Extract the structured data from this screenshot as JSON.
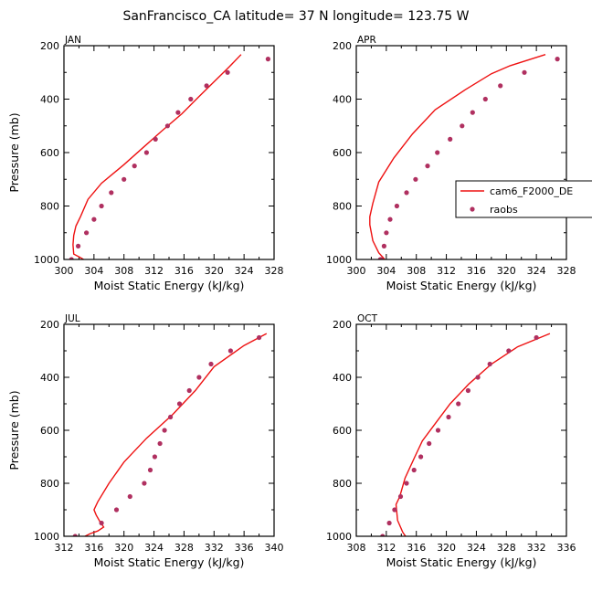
{
  "figure": {
    "title": "SanFrancisco_CA  latitude= 37 N longitude= 123.75 W"
  },
  "colors": {
    "model": "#ee1111",
    "obs": "#b03060"
  },
  "legend": {
    "model_label": "cam6_F2000_DE",
    "obs_label": "raobs"
  },
  "chart_data": [
    {
      "type": "scatter",
      "panel": "JAN",
      "xlabel": "Moist Static Energy (kJ/kg)",
      "ylabel": "Pressure (mb)",
      "xlim": [
        300,
        328
      ],
      "ylim": [
        1000,
        200
      ],
      "xticks": [
        300,
        304,
        308,
        312,
        316,
        320,
        324,
        328
      ],
      "xticklabels": [
        "300",
        "304",
        "308",
        "312",
        "316",
        "320",
        "324",
        "328"
      ],
      "yticks": [
        200,
        400,
        600,
        800,
        1000
      ],
      "yticklabels": [
        "200",
        "400",
        "600",
        "800",
        "1000"
      ],
      "series": [
        {
          "name": "cam6_F2000_DE",
          "kind": "line",
          "x": [
            323.6,
            322.0,
            320.0,
            318.0,
            315.7,
            313.0,
            310.8,
            308.0,
            305.0,
            303.2,
            302.2,
            301.6,
            301.3,
            301.2,
            301.3,
            302.2,
            303.2
          ],
          "y": [
            233,
            280,
            335,
            390,
            455,
            520,
            575,
            645,
            715,
            775,
            840,
            875,
            910,
            945,
            980,
            993,
            1010
          ]
        },
        {
          "name": "raobs",
          "kind": "scatter",
          "x": [
            327.2,
            321.8,
            319.0,
            316.9,
            315.2,
            313.8,
            312.2,
            311.0,
            309.4,
            308.0,
            306.3,
            305.0,
            304.0,
            303.0,
            301.9,
            301.0
          ],
          "y": [
            250,
            300,
            350,
            400,
            450,
            500,
            550,
            600,
            650,
            700,
            750,
            800,
            850,
            900,
            950,
            1000
          ]
        }
      ]
    },
    {
      "type": "scatter",
      "panel": "APR",
      "xlabel": "Moist Static Energy (kJ/kg)",
      "ylabel": "Pressure (mb)",
      "xlim": [
        300,
        328
      ],
      "ylim": [
        1000,
        200
      ],
      "xticks": [
        300,
        304,
        308,
        312,
        316,
        320,
        324,
        328
      ],
      "xticklabels": [
        "300",
        "304",
        "308",
        "312",
        "316",
        "320",
        "324",
        "328"
      ],
      "yticks": [
        200,
        400,
        600,
        800,
        1000
      ],
      "yticklabels": [
        "200",
        "400",
        "600",
        "800",
        "1000"
      ],
      "series": [
        {
          "name": "cam6_F2000_DE",
          "kind": "line",
          "x": [
            325.2,
            320.5,
            318.0,
            314.5,
            310.5,
            307.5,
            305.0,
            303.0,
            302.2,
            301.8,
            301.8,
            302.2,
            303.0,
            303.8
          ],
          "y": [
            233,
            275,
            305,
            365,
            440,
            530,
            620,
            710,
            790,
            840,
            870,
            930,
            975,
            1000
          ]
        },
        {
          "name": "raobs",
          "kind": "scatter",
          "x": [
            326.8,
            322.4,
            319.2,
            317.2,
            315.5,
            314.1,
            312.5,
            310.8,
            309.5,
            307.9,
            306.7,
            305.4,
            304.5,
            304.0,
            303.7,
            303.3,
            303.2
          ],
          "y": [
            250,
            300,
            350,
            400,
            450,
            500,
            550,
            600,
            650,
            700,
            750,
            800,
            850,
            900,
            950,
            1000,
            1000
          ]
        }
      ]
    },
    {
      "type": "scatter",
      "panel": "JUL",
      "xlabel": "Moist Static Energy (kJ/kg)",
      "ylabel": "Pressure (mb)",
      "xlim": [
        312,
        340
      ],
      "ylim": [
        1000,
        200
      ],
      "xticks": [
        312,
        316,
        320,
        324,
        328,
        332,
        336,
        340
      ],
      "xticklabels": [
        "312",
        "316",
        "320",
        "324",
        "328",
        "332",
        "336",
        "340"
      ],
      "yticks": [
        200,
        400,
        600,
        800,
        1000
      ],
      "yticklabels": [
        "200",
        "400",
        "600",
        "800",
        "1000"
      ],
      "series": [
        {
          "name": "cam6_F2000_DE",
          "kind": "line",
          "x": [
            339.0,
            336.0,
            332.0,
            329.5,
            326.5,
            323.0,
            320.0,
            318.0,
            316.5,
            316.0,
            316.3,
            316.8,
            317.3,
            316.5,
            315.5,
            314.8
          ],
          "y": [
            235,
            280,
            360,
            450,
            540,
            630,
            720,
            800,
            870,
            900,
            920,
            945,
            965,
            980,
            990,
            1000
          ]
        },
        {
          "name": "raobs",
          "kind": "scatter",
          "x": [
            338.0,
            334.2,
            331.6,
            330.0,
            328.7,
            327.4,
            326.2,
            325.4,
            324.8,
            324.1,
            323.5,
            322.7,
            320.8,
            319.0,
            317.0,
            313.5
          ],
          "y": [
            250,
            300,
            350,
            400,
            450,
            500,
            550,
            600,
            650,
            700,
            750,
            800,
            850,
            900,
            950,
            1000
          ]
        }
      ]
    },
    {
      "type": "scatter",
      "panel": "OCT",
      "xlabel": "Moist Static Energy (kJ/kg)",
      "ylabel": "Pressure (mb)",
      "xlim": [
        308,
        336
      ],
      "ylim": [
        1000,
        200
      ],
      "xticks": [
        308,
        312,
        316,
        320,
        324,
        328,
        332,
        336
      ],
      "xticklabels": [
        "308",
        "312",
        "316",
        "320",
        "324",
        "328",
        "332",
        "336"
      ],
      "yticks": [
        200,
        400,
        600,
        800,
        1000
      ],
      "yticklabels": [
        "200",
        "400",
        "600",
        "800",
        "1000"
      ],
      "series": [
        {
          "name": "cam6_F2000_DE",
          "kind": "line",
          "x": [
            333.8,
            329.5,
            326.0,
            323.0,
            320.5,
            318.5,
            316.8,
            315.8,
            314.5,
            313.8,
            313.3,
            313.5,
            314.2,
            314.8
          ],
          "y": [
            235,
            285,
            350,
            425,
            500,
            575,
            640,
            700,
            780,
            850,
            880,
            940,
            985,
            1010
          ]
        },
        {
          "name": "raobs",
          "kind": "scatter",
          "x": [
            332.0,
            328.3,
            325.8,
            324.2,
            322.9,
            321.6,
            320.3,
            318.9,
            317.7,
            316.6,
            315.7,
            314.7,
            313.9,
            313.1,
            312.4,
            311.5
          ],
          "y": [
            250,
            300,
            350,
            400,
            450,
            500,
            550,
            600,
            650,
            700,
            750,
            800,
            850,
            900,
            950,
            1000
          ]
        }
      ]
    }
  ]
}
